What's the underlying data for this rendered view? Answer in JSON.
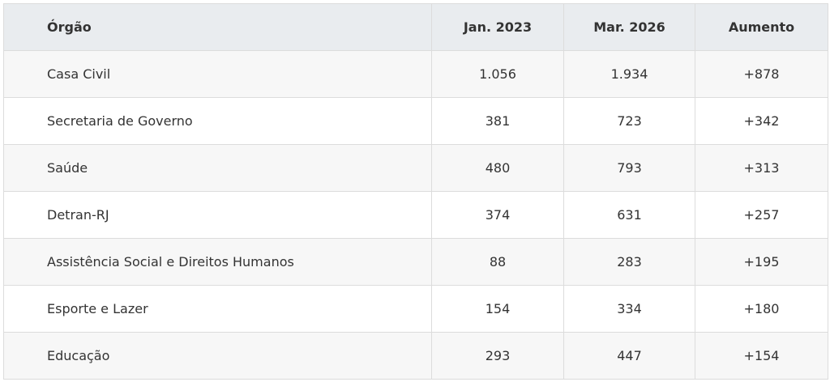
{
  "table": {
    "header": [
      "Órgão",
      "Jan. 2023",
      "Mar. 2026",
      "Aumento"
    ],
    "rows": [
      [
        "Casa Civil",
        "1.056",
        "1.934",
        "+878"
      ],
      [
        "Secretaria de Governo",
        "381",
        "723",
        "+342"
      ],
      [
        "Saúde",
        "480",
        "793",
        "+313"
      ],
      [
        "Detran-RJ",
        "374",
        "631",
        "+257"
      ],
      [
        "Assistência Social e Direitos Humanos",
        "88",
        "283",
        "+195"
      ],
      [
        "Esporte e Lazer",
        "154",
        "334",
        "+180"
      ],
      [
        "Educação",
        "293",
        "447",
        "+154"
      ]
    ]
  }
}
